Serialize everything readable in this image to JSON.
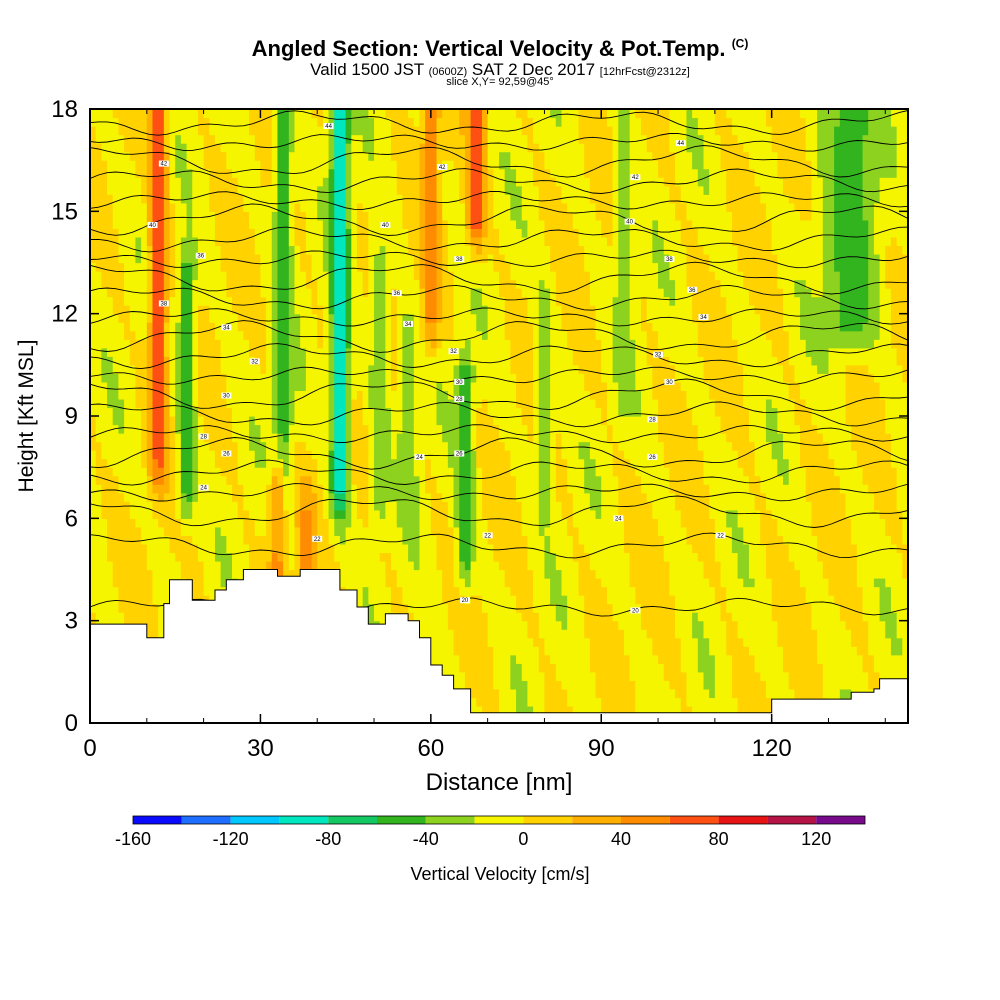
{
  "title": {
    "main": "Angled Section: Vertical Velocity & Pot.Temp.",
    "main_unit": "(C)",
    "valid_a": "Valid 1500 JST",
    "valid_z": "(0600Z)",
    "valid_b": "SAT 2 Dec 2017",
    "fcst": "[12hrFcst@2312z]",
    "slice": "slice X,Y= 92,59@45°"
  },
  "chart_data": {
    "type": "heatmap",
    "xlabel": "Distance [nm]",
    "ylabel": "Height [Kft MSL]",
    "xlim": [
      0,
      144
    ],
    "ylim": [
      0,
      18
    ],
    "x_ticks": [
      0,
      30,
      60,
      90,
      120
    ],
    "y_ticks": [
      0,
      3,
      6,
      9,
      12,
      15,
      18
    ],
    "colorbar": {
      "label": "Vertical Velocity [cm/s]",
      "ticks": [
        -160,
        -120,
        -80,
        -40,
        0,
        40,
        80,
        120
      ],
      "bins": [
        {
          "from": -160,
          "to": -140,
          "color": "#0a0aff"
        },
        {
          "from": -140,
          "to": -120,
          "color": "#1e6eff"
        },
        {
          "from": -120,
          "to": -100,
          "color": "#00c8ff"
        },
        {
          "from": -100,
          "to": -80,
          "color": "#00e6be"
        },
        {
          "from": -80,
          "to": -60,
          "color": "#14c864"
        },
        {
          "from": -60,
          "to": -40,
          "color": "#32b41e"
        },
        {
          "from": -40,
          "to": -20,
          "color": "#8cd21e"
        },
        {
          "from": -20,
          "to": 0,
          "color": "#f5f500"
        },
        {
          "from": 0,
          "to": 20,
          "color": "#ffd200"
        },
        {
          "from": 20,
          "to": 40,
          "color": "#ffaf00"
        },
        {
          "from": 40,
          "to": 60,
          "color": "#ff8c00"
        },
        {
          "from": 60,
          "to": 80,
          "color": "#ff5014"
        },
        {
          "from": 80,
          "to": 100,
          "color": "#e61414"
        },
        {
          "from": 100,
          "to": 120,
          "color": "#b41446"
        },
        {
          "from": 120,
          "to": 140,
          "color": "#780a8c"
        }
      ]
    },
    "velocity_features": [
      {
        "x": 12,
        "y0": 8,
        "y1": 18,
        "value": 70
      },
      {
        "x": 17,
        "y0": 7,
        "y1": 13,
        "value": -50
      },
      {
        "x": 34,
        "y0": 7,
        "y1": 18,
        "value": -50
      },
      {
        "x": 44,
        "y0": 7,
        "y1": 18,
        "value": -90
      },
      {
        "x": 51,
        "y0": 7,
        "y1": 13,
        "value": -40
      },
      {
        "x": 56,
        "y0": 7,
        "y1": 11,
        "value": -40
      },
      {
        "x": 60,
        "y0": 12,
        "y1": 18,
        "value": 50
      },
      {
        "x": 68,
        "y0": 15,
        "y1": 18,
        "value": 75
      },
      {
        "x": 66,
        "y0": 5,
        "y1": 10,
        "value": -50
      },
      {
        "x": 80,
        "y0": 7,
        "y1": 12,
        "value": -30
      },
      {
        "x": 94,
        "y0": 10,
        "y1": 18,
        "value": -30
      },
      {
        "x": 134,
        "y0": 12,
        "y1": 18,
        "value": -50
      },
      {
        "x": 33,
        "y0": 3.5,
        "y1": 6.5,
        "value": 45
      },
      {
        "x": 38,
        "y0": 3.5,
        "y1": 6,
        "value": 45
      }
    ],
    "terrain": [
      [
        0,
        2.9
      ],
      [
        5,
        2.9
      ],
      [
        10,
        2.5
      ],
      [
        13,
        3.5
      ],
      [
        14,
        4.2
      ],
      [
        17,
        4.2
      ],
      [
        18,
        3.6
      ],
      [
        22,
        3.9
      ],
      [
        24,
        4.2
      ],
      [
        27,
        4.5
      ],
      [
        30,
        4.5
      ],
      [
        33,
        4.3
      ],
      [
        37,
        4.5
      ],
      [
        41,
        4.5
      ],
      [
        44,
        3.9
      ],
      [
        47,
        3.4
      ],
      [
        49,
        2.9
      ],
      [
        52,
        3.2
      ],
      [
        56,
        3.0
      ],
      [
        58,
        2.5
      ],
      [
        60,
        1.7
      ],
      [
        62,
        1.4
      ],
      [
        64,
        1.0
      ],
      [
        67,
        0.3
      ],
      [
        116,
        0.3
      ],
      [
        120,
        0.7
      ],
      [
        131,
        0.7
      ],
      [
        134,
        0.9
      ],
      [
        138,
        1.0
      ],
      [
        139,
        1.3
      ],
      [
        144,
        1.3
      ]
    ],
    "contour_labels": [
      {
        "x": 42,
        "y": 17.5,
        "text": "44"
      },
      {
        "x": 13,
        "y": 16.4,
        "text": "42"
      },
      {
        "x": 11,
        "y": 14.6,
        "text": "40"
      },
      {
        "x": 13,
        "y": 12.3,
        "text": "38"
      },
      {
        "x": 19.5,
        "y": 13.7,
        "text": "36"
      },
      {
        "x": 24,
        "y": 11.6,
        "text": "34"
      },
      {
        "x": 29,
        "y": 10.6,
        "text": "32"
      },
      {
        "x": 24,
        "y": 9.6,
        "text": "30"
      },
      {
        "x": 20,
        "y": 8.4,
        "text": "28"
      },
      {
        "x": 24,
        "y": 7.9,
        "text": "26"
      },
      {
        "x": 20,
        "y": 6.9,
        "text": "24"
      },
      {
        "x": 40,
        "y": 5.4,
        "text": "22"
      },
      {
        "x": 62,
        "y": 16.3,
        "text": "42"
      },
      {
        "x": 52,
        "y": 14.6,
        "text": "40"
      },
      {
        "x": 65,
        "y": 13.6,
        "text": "38"
      },
      {
        "x": 54,
        "y": 12.6,
        "text": "36"
      },
      {
        "x": 56,
        "y": 11.7,
        "text": "34"
      },
      {
        "x": 64,
        "y": 10.9,
        "text": "32"
      },
      {
        "x": 65,
        "y": 10.0,
        "text": "30"
      },
      {
        "x": 65,
        "y": 9.5,
        "text": "28"
      },
      {
        "x": 65,
        "y": 7.9,
        "text": "26"
      },
      {
        "x": 58,
        "y": 7.8,
        "text": "24"
      },
      {
        "x": 70,
        "y": 5.5,
        "text": "22"
      },
      {
        "x": 66,
        "y": 3.6,
        "text": "20"
      },
      {
        "x": 96,
        "y": 16.0,
        "text": "42"
      },
      {
        "x": 104,
        "y": 17.0,
        "text": "44"
      },
      {
        "x": 95,
        "y": 14.7,
        "text": "40"
      },
      {
        "x": 102,
        "y": 13.6,
        "text": "38"
      },
      {
        "x": 106,
        "y": 12.7,
        "text": "36"
      },
      {
        "x": 108,
        "y": 11.9,
        "text": "34"
      },
      {
        "x": 100,
        "y": 10.8,
        "text": "32"
      },
      {
        "x": 102,
        "y": 10.0,
        "text": "30"
      },
      {
        "x": 99,
        "y": 8.9,
        "text": "28"
      },
      {
        "x": 99,
        "y": 7.8,
        "text": "26"
      },
      {
        "x": 93,
        "y": 6.0,
        "text": "24"
      },
      {
        "x": 111,
        "y": 5.5,
        "text": "22"
      },
      {
        "x": 96,
        "y": 3.3,
        "text": "20"
      }
    ]
  }
}
